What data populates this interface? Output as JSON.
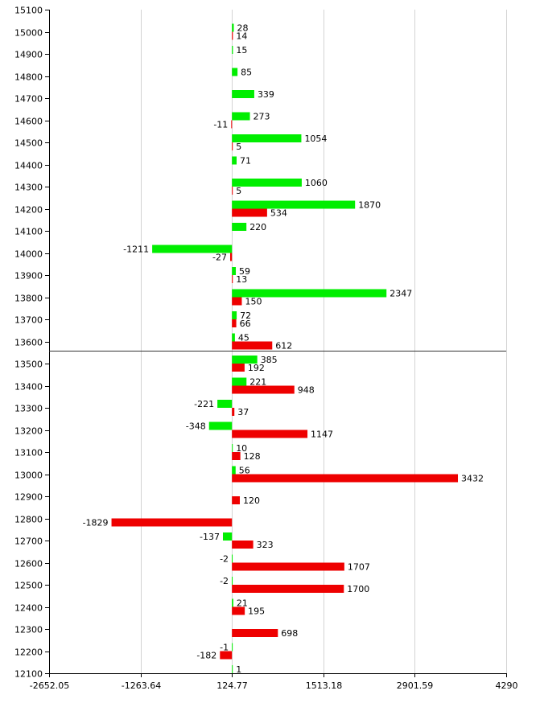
{
  "chart_data": {
    "type": "bar",
    "orientation": "horizontal",
    "title": "",
    "xlabel": "",
    "ylabel": "",
    "xlim": [
      -2652.05,
      4290
    ],
    "ylim": [
      12100,
      15100
    ],
    "x_ticks": [
      -2652.05,
      -1263.64,
      124.77,
      1513.18,
      2901.59,
      4290
    ],
    "x_tick_labels": [
      "-2652.05",
      "-1263.64",
      "124.77",
      "1513.18",
      "2901.59",
      "4290"
    ],
    "y_ticks": [
      15100,
      15000,
      14900,
      14800,
      14700,
      14600,
      14500,
      14400,
      14300,
      14200,
      14100,
      14000,
      13900,
      13800,
      13700,
      13600,
      13500,
      13400,
      13300,
      13200,
      13100,
      13000,
      12900,
      12800,
      12700,
      12600,
      12500,
      12400,
      12300,
      12200,
      12100
    ],
    "baseline": 124.77,
    "reference_line_y": 13560,
    "grid": "vertical",
    "series": [
      {
        "color": "#00ee00",
        "points": [
          {
            "y": 15000,
            "value": 28
          },
          {
            "y": 14900,
            "value": 15
          },
          {
            "y": 14800,
            "value": 85
          },
          {
            "y": 14700,
            "value": 339
          },
          {
            "y": 14600,
            "value": 273
          },
          {
            "y": 14500,
            "value": 1054
          },
          {
            "y": 14400,
            "value": 71
          },
          {
            "y": 14300,
            "value": 1060
          },
          {
            "y": 14200,
            "value": 1870
          },
          {
            "y": 14100,
            "value": 220
          },
          {
            "y": 14000,
            "value": -1211
          },
          {
            "y": 13900,
            "value": 59
          },
          {
            "y": 13800,
            "value": 2347
          },
          {
            "y": 13700,
            "value": 72
          },
          {
            "y": 13600,
            "value": 45
          },
          {
            "y": 13500,
            "value": 385
          },
          {
            "y": 13400,
            "value": 221
          },
          {
            "y": 13300,
            "value": -221
          },
          {
            "y": 13200,
            "value": -348
          },
          {
            "y": 13100,
            "value": 10
          },
          {
            "y": 13000,
            "value": 56
          },
          {
            "y": 12700,
            "value": -137
          },
          {
            "y": 12600,
            "value": -2
          },
          {
            "y": 12500,
            "value": -2
          },
          {
            "y": 12400,
            "value": 21
          },
          {
            "y": 12200,
            "value": -1
          },
          {
            "y": 12100,
            "value": 1
          }
        ]
      },
      {
        "color": "#ee0000",
        "points": [
          {
            "y": 15000,
            "value": 14
          },
          {
            "y": 14600,
            "value": -11
          },
          {
            "y": 14500,
            "value": 5
          },
          {
            "y": 14300,
            "value": 5
          },
          {
            "y": 14200,
            "value": 534
          },
          {
            "y": 14000,
            "value": -27
          },
          {
            "y": 13900,
            "value": 13
          },
          {
            "y": 13800,
            "value": 150
          },
          {
            "y": 13700,
            "value": 66
          },
          {
            "y": 13600,
            "value": 612
          },
          {
            "y": 13500,
            "value": 192
          },
          {
            "y": 13400,
            "value": 948
          },
          {
            "y": 13300,
            "value": 37
          },
          {
            "y": 13200,
            "value": 1147
          },
          {
            "y": 13100,
            "value": 128
          },
          {
            "y": 13000,
            "value": 3432
          },
          {
            "y": 12900,
            "value": 120
          },
          {
            "y": 12800,
            "value": -1829
          },
          {
            "y": 12700,
            "value": 323
          },
          {
            "y": 12600,
            "value": 1707
          },
          {
            "y": 12500,
            "value": 1700
          },
          {
            "y": 12400,
            "value": 195
          },
          {
            "y": 12300,
            "value": 698
          },
          {
            "y": 12200,
            "value": -182
          }
        ]
      }
    ]
  }
}
